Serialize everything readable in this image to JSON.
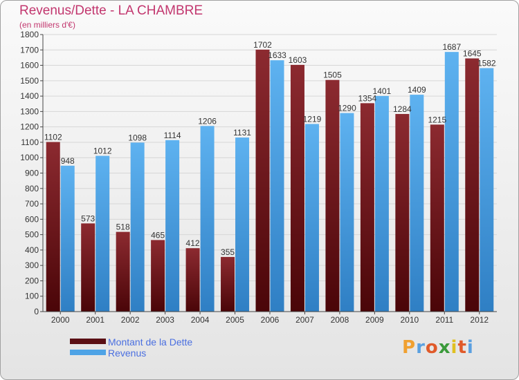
{
  "chart_data": {
    "type": "bar",
    "title": "Revenus/Dette - LA CHAMBRE",
    "subtitle": "(en milliers d'€)",
    "categories": [
      "2000",
      "2001",
      "2002",
      "2003",
      "2004",
      "2005",
      "2006",
      "2007",
      "2008",
      "2009",
      "2010",
      "2011",
      "2012"
    ],
    "series": [
      {
        "name": "Montant de la Dette",
        "color": "#7a1a1f",
        "values": [
          1102,
          573,
          518,
          465,
          412,
          355,
          1702,
          1603,
          1505,
          1354,
          1284,
          1215,
          1645
        ]
      },
      {
        "name": "Revenus",
        "color": "#4ea3e6",
        "values": [
          948,
          1012,
          1098,
          1114,
          1206,
          1131,
          1633,
          1219,
          1290,
          1401,
          1409,
          1687,
          1582
        ]
      }
    ],
    "ylim": [
      0,
      1800
    ],
    "ytick_step": 100,
    "grid": true,
    "legend_position": "bottom-left"
  },
  "logo": {
    "letters": [
      "P",
      "r",
      "o",
      "x",
      "i",
      "t",
      "i"
    ],
    "colors": [
      "#f0a030",
      "#5aa0e0",
      "#e05a2a",
      "#3a9a3a",
      "#e0c020",
      "#e05a2a",
      "#5aa0e0"
    ]
  }
}
